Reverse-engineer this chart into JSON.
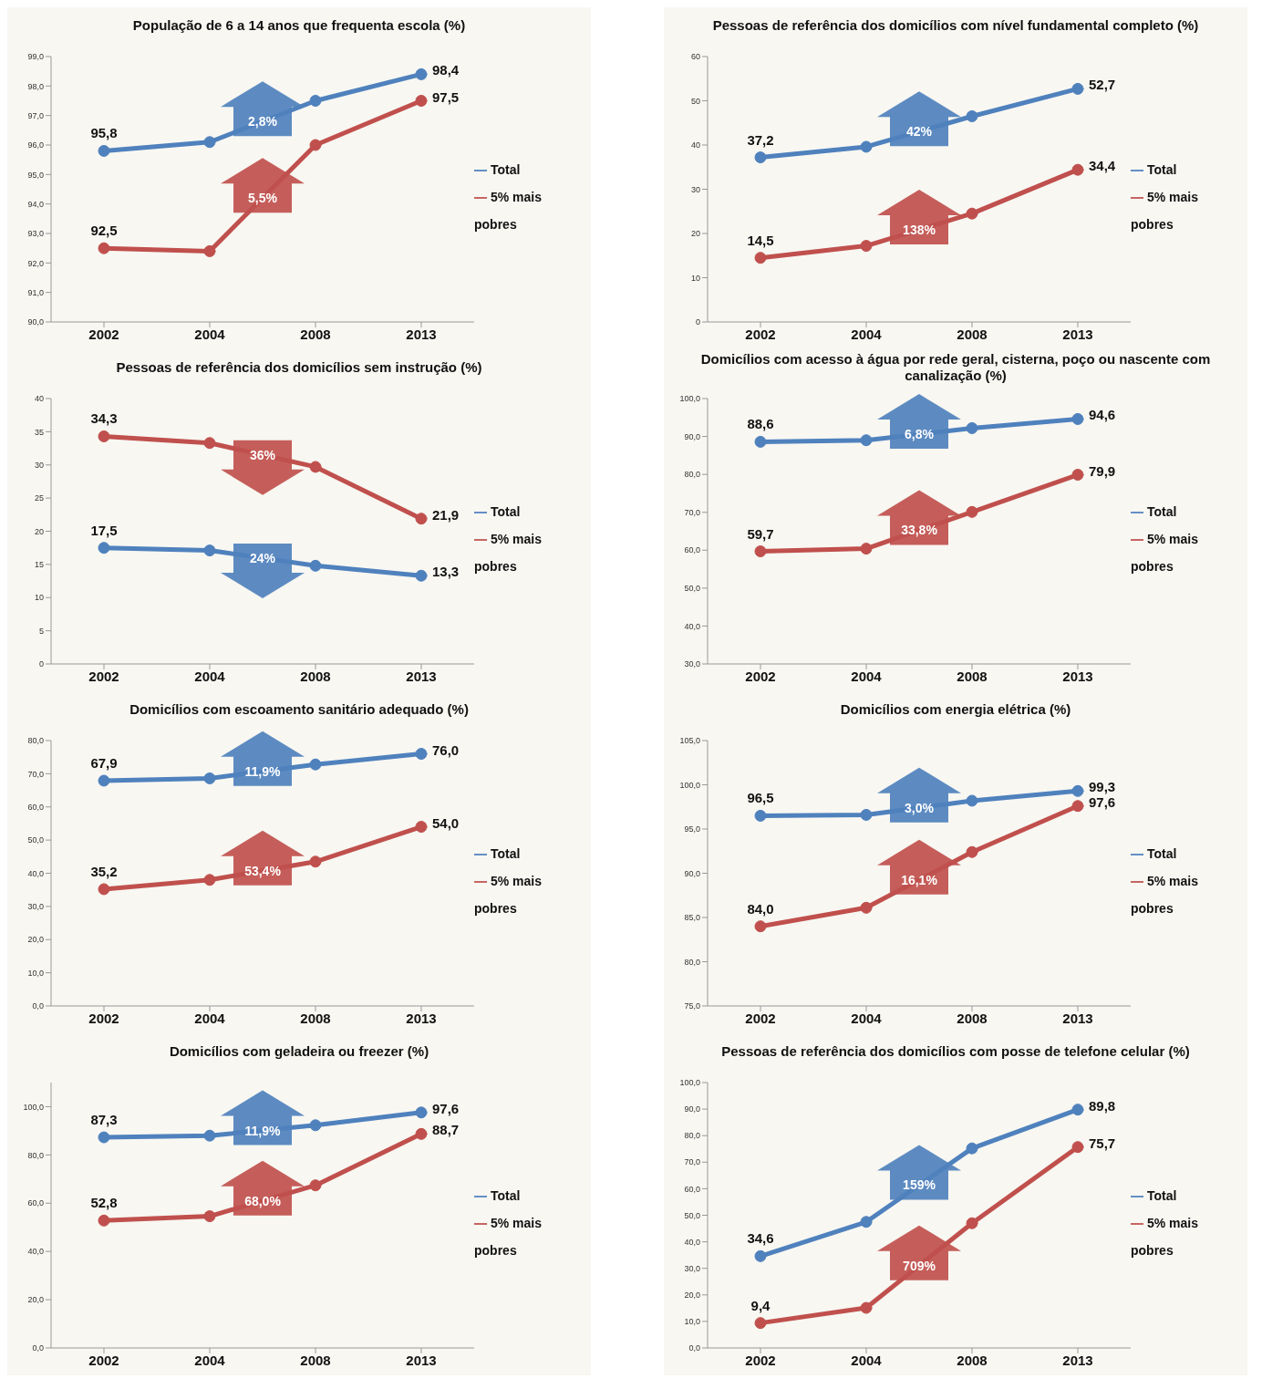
{
  "chart_data": [
    {
      "type": "line",
      "title": "População de 6 a 14 anos que frequenta escola (%)",
      "categories": [
        "2002",
        "2004",
        "2008",
        "2013"
      ],
      "legend": "right",
      "marker": "circle",
      "line_style": "solid",
      "ylim": [
        90,
        99
      ],
      "yticks": [
        {
          "value": 90,
          "label": "90,0"
        },
        {
          "value": 91,
          "label": "91,0"
        },
        {
          "value": 92,
          "label": "92,0"
        },
        {
          "value": 93,
          "label": "93,0"
        },
        {
          "value": 94,
          "label": "94,0"
        },
        {
          "value": 95,
          "label": "95,0"
        },
        {
          "value": 96,
          "label": "96,0"
        },
        {
          "value": 97,
          "label": "97,0"
        },
        {
          "value": 98,
          "label": "98,0"
        },
        {
          "value": 99,
          "label": "99,0"
        }
      ],
      "annotations": [
        "2,8%",
        "5,5%"
      ],
      "series": [
        {
          "name": "Total",
          "color": "#4f81bd",
          "values": [
            95.8,
            96.1,
            97.5,
            98.4
          ],
          "value_labels": [
            "95,8",
            null,
            null,
            "98,4"
          ]
        },
        {
          "name": "5% mais pobres",
          "color": "#c0504d",
          "values": [
            92.5,
            92.4,
            96.0,
            97.5
          ],
          "value_labels": [
            "92,5",
            null,
            null,
            "97,5"
          ]
        }
      ]
    },
    {
      "type": "line",
      "title": "Pessoas de referência dos domicílios com nível fundamental completo (%)",
      "categories": [
        "2002",
        "2004",
        "2008",
        "2013"
      ],
      "legend": "right",
      "marker": "circle",
      "line_style": "solid",
      "ylim": [
        0,
        60
      ],
      "yticks": [
        0,
        10,
        20,
        30,
        40,
        50,
        60
      ],
      "annotations": [
        "42%",
        "138%"
      ],
      "series": [
        {
          "name": "Total",
          "color": "#4f81bd",
          "values": [
            37.2,
            39.6,
            46.5,
            52.7
          ],
          "value_labels": [
            "37,2",
            null,
            null,
            "52,7"
          ]
        },
        {
          "name": "5% mais pobres",
          "color": "#c0504d",
          "values": [
            14.5,
            17.2,
            24.5,
            34.4
          ],
          "value_labels": [
            "14,5",
            null,
            null,
            "34,4"
          ]
        }
      ]
    },
    {
      "type": "line",
      "title": "Pessoas de referência dos domicílios sem instrução (%)",
      "categories": [
        "2002",
        "2004",
        "2008",
        "2013"
      ],
      "legend": "right",
      "marker": "circle",
      "line_style": "solid",
      "ylim": [
        0,
        40
      ],
      "yticks": [
        0,
        5,
        10,
        15,
        20,
        25,
        30,
        35,
        40
      ],
      "annotations": [
        "24%",
        "36%"
      ],
      "series": [
        {
          "name": "Total",
          "color": "#4f81bd",
          "values": [
            17.5,
            17.1,
            14.8,
            13.3
          ],
          "value_labels": [
            "17,5",
            null,
            null,
            "13,3"
          ]
        },
        {
          "name": "5% mais pobres",
          "color": "#c0504d",
          "values": [
            34.3,
            33.3,
            29.7,
            21.9
          ],
          "value_labels": [
            "34,3",
            null,
            null,
            "21,9"
          ]
        }
      ]
    },
    {
      "type": "line",
      "title": "Domicílios com acesso à água por rede geral, cisterna, poço ou nascente com canalização (%)",
      "categories": [
        "2002",
        "2004",
        "2008",
        "2013"
      ],
      "legend": "right",
      "marker": "circle",
      "line_style": "solid",
      "ylim": [
        30,
        100
      ],
      "yticks": [
        {
          "value": 30,
          "label": "30,0"
        },
        {
          "value": 40,
          "label": "40,0"
        },
        {
          "value": 50,
          "label": "50,0"
        },
        {
          "value": 60,
          "label": "60,0"
        },
        {
          "value": 70,
          "label": "70,0"
        },
        {
          "value": 80,
          "label": "80,0"
        },
        {
          "value": 90,
          "label": "90,0"
        },
        {
          "value": 100,
          "label": "100,0"
        }
      ],
      "annotations": [
        "6,8%",
        "33,8%"
      ],
      "series": [
        {
          "name": "Total",
          "color": "#4f81bd",
          "values": [
            88.6,
            89.0,
            92.2,
            94.6
          ],
          "value_labels": [
            "88,6",
            null,
            null,
            "94,6"
          ]
        },
        {
          "name": "5% mais pobres",
          "color": "#c0504d",
          "values": [
            59.7,
            60.4,
            70.1,
            79.9
          ],
          "value_labels": [
            "59,7",
            null,
            null,
            "79,9"
          ]
        }
      ]
    },
    {
      "type": "line",
      "title": "Domicílios com escoamento sanitário adequado (%)",
      "categories": [
        "2002",
        "2004",
        "2008",
        "2013"
      ],
      "legend": "right",
      "marker": "circle",
      "line_style": "solid",
      "ylim": [
        0,
        80
      ],
      "yticks": [
        {
          "value": 0,
          "label": "0,0"
        },
        {
          "value": 10,
          "label": "10,0"
        },
        {
          "value": 20,
          "label": "20,0"
        },
        {
          "value": 30,
          "label": "30,0"
        },
        {
          "value": 40,
          "label": "40,0"
        },
        {
          "value": 50,
          "label": "50,0"
        },
        {
          "value": 60,
          "label": "60,0"
        },
        {
          "value": 70,
          "label": "70,0"
        },
        {
          "value": 80,
          "label": "80,0"
        }
      ],
      "annotations": [
        "11,9%",
        "53,4%"
      ],
      "series": [
        {
          "name": "Total",
          "color": "#4f81bd",
          "values": [
            67.9,
            68.6,
            72.8,
            76.0
          ],
          "value_labels": [
            "67,9",
            null,
            null,
            "76,0"
          ]
        },
        {
          "name": "5% mais pobres",
          "color": "#c0504d",
          "values": [
            35.2,
            38.0,
            43.5,
            54.0
          ],
          "value_labels": [
            "35,2",
            null,
            null,
            "54,0"
          ]
        }
      ]
    },
    {
      "type": "line",
      "title": "Domicílios com energia elétrica (%)",
      "categories": [
        "2002",
        "2004",
        "2008",
        "2013"
      ],
      "legend": "right",
      "marker": "circle",
      "line_style": "solid",
      "ylim": [
        75,
        105
      ],
      "yticks": [
        {
          "value": 75,
          "label": "75,0"
        },
        {
          "value": 80,
          "label": "80,0"
        },
        {
          "value": 85,
          "label": "85,0"
        },
        {
          "value": 90,
          "label": "90,0"
        },
        {
          "value": 95,
          "label": "95,0"
        },
        {
          "value": 100,
          "label": "100,0"
        },
        {
          "value": 105,
          "label": "105,0"
        }
      ],
      "annotations": [
        "3,0%",
        "16,1%"
      ],
      "series": [
        {
          "name": "Total",
          "color": "#4f81bd",
          "values": [
            96.5,
            96.6,
            98.2,
            99.3
          ],
          "value_labels": [
            "96,5",
            null,
            null,
            "99,3"
          ]
        },
        {
          "name": "5% mais pobres",
          "color": "#c0504d",
          "values": [
            84.0,
            86.1,
            92.4,
            97.6
          ],
          "value_labels": [
            "84,0",
            null,
            null,
            "97,6"
          ]
        }
      ]
    },
    {
      "type": "line",
      "title": "Domicílios com geladeira ou freezer (%)",
      "categories": [
        "2002",
        "2004",
        "2008",
        "2013"
      ],
      "legend": "right",
      "marker": "circle",
      "line_style": "solid",
      "ylim": [
        0,
        110
      ],
      "yticks": [
        {
          "value": 0,
          "label": "0,0"
        },
        {
          "value": 20,
          "label": "20,0"
        },
        {
          "value": 40,
          "label": "40,0"
        },
        {
          "value": 60,
          "label": "60,0"
        },
        {
          "value": 80,
          "label": "80,0"
        },
        {
          "value": 100,
          "label": "100,0"
        }
      ],
      "annotations": [
        "11,9%",
        "68,0%"
      ],
      "series": [
        {
          "name": "Total",
          "color": "#4f81bd",
          "values": [
            87.3,
            88.0,
            92.3,
            97.6
          ],
          "value_labels": [
            "87,3",
            null,
            null,
            "97,6"
          ]
        },
        {
          "name": "5% mais pobres",
          "color": "#c0504d",
          "values": [
            52.8,
            54.6,
            67.4,
            88.7
          ],
          "value_labels": [
            "52,8",
            null,
            null,
            "88,7"
          ]
        }
      ]
    },
    {
      "type": "line",
      "title": "Pessoas de referência dos domicílios com posse de telefone celular (%)",
      "categories": [
        "2002",
        "2004",
        "2008",
        "2013"
      ],
      "legend": "right",
      "marker": "circle",
      "line_style": "solid",
      "ylim": [
        0,
        100
      ],
      "yticks": [
        {
          "value": 0,
          "label": "0,0"
        },
        {
          "value": 10,
          "label": "10,0"
        },
        {
          "value": 20,
          "label": "20,0"
        },
        {
          "value": 30,
          "label": "30,0"
        },
        {
          "value": 40,
          "label": "40,0"
        },
        {
          "value": 50,
          "label": "50,0"
        },
        {
          "value": 60,
          "label": "60,0"
        },
        {
          "value": 70,
          "label": "70,0"
        },
        {
          "value": 80,
          "label": "80,0"
        },
        {
          "value": 90,
          "label": "90,0"
        },
        {
          "value": 100,
          "label": "100,0"
        }
      ],
      "annotations": [
        "159%",
        "709%"
      ],
      "series": [
        {
          "name": "Total",
          "color": "#4f81bd",
          "values": [
            34.6,
            47.5,
            75.2,
            89.8
          ],
          "value_labels": [
            "34,6",
            null,
            null,
            "89,8"
          ]
        },
        {
          "name": "5% mais pobres",
          "color": "#c0504d",
          "values": [
            9.4,
            15.1,
            47.0,
            75.7
          ],
          "value_labels": [
            "9,4",
            null,
            null,
            "75,7"
          ]
        }
      ]
    }
  ]
}
